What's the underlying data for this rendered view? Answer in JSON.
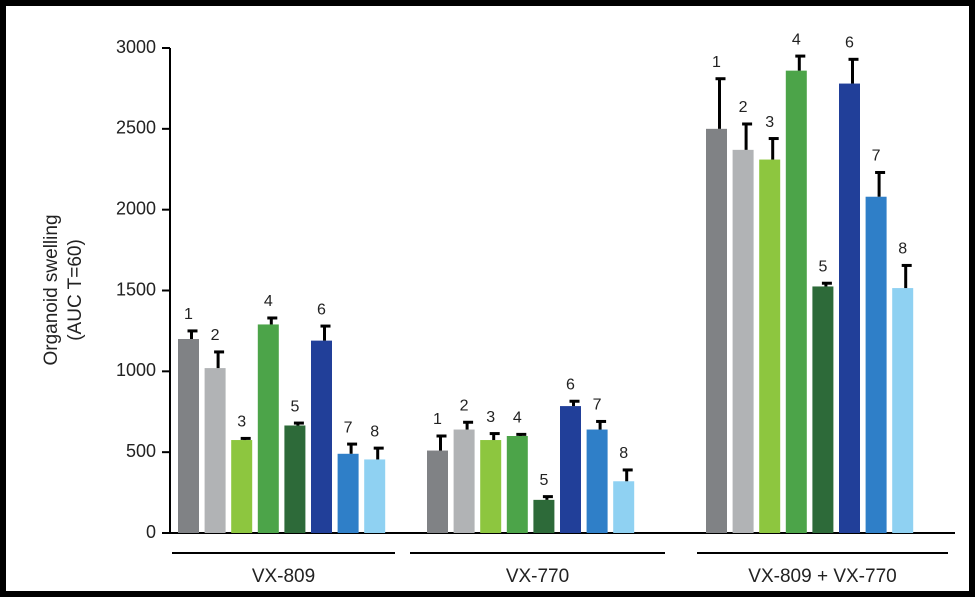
{
  "chart_data": {
    "type": "bar",
    "ylabel": [
      "Organoid swelling",
      "(AUC T=60)"
    ],
    "categories": [
      "VX-809",
      "VX-770",
      "VX-809 + VX-770"
    ],
    "ylim": [
      0,
      3000
    ],
    "yticks": [
      0,
      500,
      1000,
      1500,
      2000,
      2500,
      3000
    ],
    "series": [
      {
        "name": "1",
        "color": "#808285",
        "values": [
          1200,
          510,
          2500
        ],
        "errors": [
          50,
          90,
          310
        ]
      },
      {
        "name": "2",
        "color": "#b1b3b5",
        "values": [
          1020,
          640,
          2370
        ],
        "errors": [
          100,
          45,
          160
        ]
      },
      {
        "name": "3",
        "color": "#8dc63f",
        "values": [
          575,
          575,
          2310
        ],
        "errors": [
          10,
          40,
          130
        ]
      },
      {
        "name": "4",
        "color": "#4ca449",
        "values": [
          1290,
          600,
          2860
        ],
        "errors": [
          40,
          10,
          90
        ]
      },
      {
        "name": "5",
        "color": "#2d6a39",
        "values": [
          665,
          205,
          1525
        ],
        "errors": [
          15,
          20,
          20
        ]
      },
      {
        "name": "6",
        "color": "#213f99",
        "values": [
          1190,
          785,
          2780
        ],
        "errors": [
          90,
          30,
          150
        ]
      },
      {
        "name": "7",
        "color": "#2f7fc8",
        "values": [
          490,
          640,
          2080
        ],
        "errors": [
          60,
          50,
          150
        ]
      },
      {
        "name": "8",
        "color": "#8fd1f2",
        "values": [
          455,
          320,
          1515
        ],
        "errors": [
          70,
          70,
          140
        ]
      }
    ]
  }
}
